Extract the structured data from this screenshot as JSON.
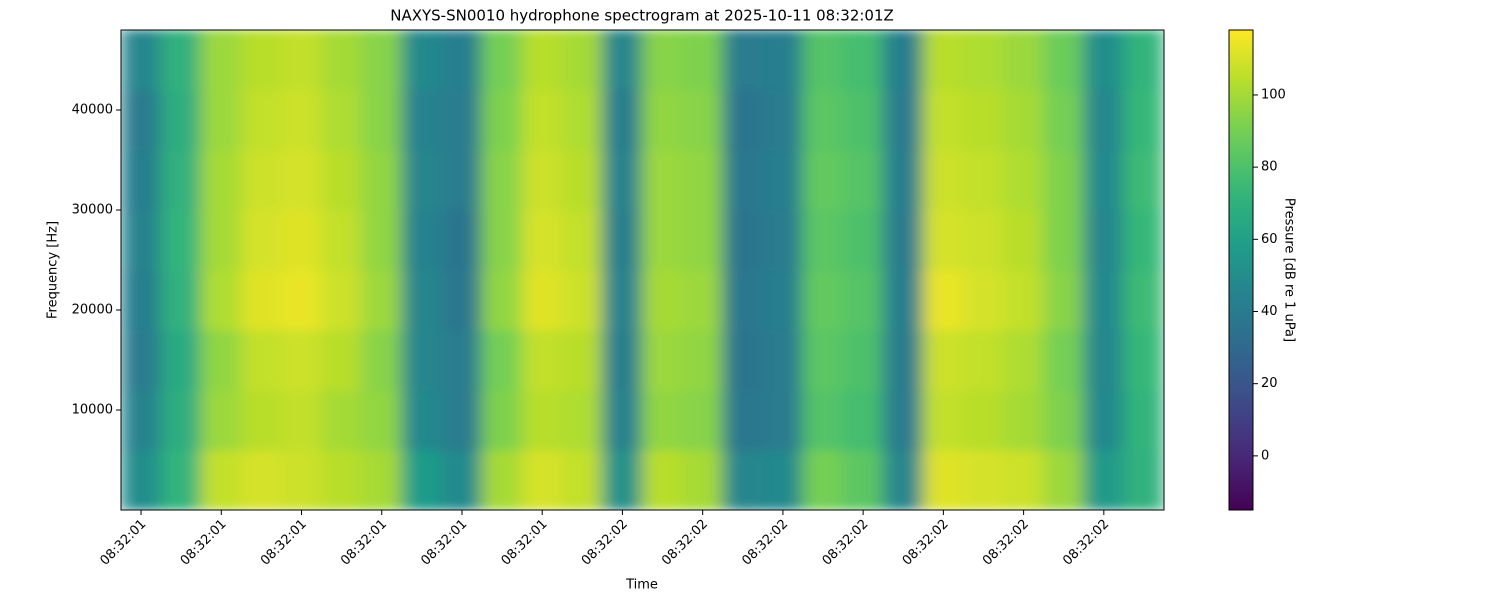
{
  "chart_data": {
    "type": "heatmap",
    "title": "NAXYS-SN0010 hydrophone spectrogram at 2025-10-11 08:32:01Z",
    "xlabel": "Time",
    "ylabel": "Frequency [Hz]",
    "colorbar_label": "Pressure [dB re 1 uPa]",
    "colormap": "viridis",
    "x": [
      1.4,
      1.45,
      1.5,
      1.55,
      1.6,
      1.65,
      1.7,
      1.75,
      1.8,
      1.85,
      1.9,
      1.95,
      2.0,
      2.05,
      2.1,
      2.15,
      2.2,
      2.25,
      2.3,
      2.35,
      2.4,
      2.45,
      2.5,
      2.55,
      2.6,
      2.65
    ],
    "y": [
      3000,
      9000,
      15000,
      21000,
      27000,
      33000,
      39000,
      45000
    ],
    "z": [
      [
        50,
        72,
        106,
        110,
        108,
        104,
        100,
        58,
        48,
        100,
        110,
        106,
        52,
        104,
        100,
        46,
        48,
        90,
        84,
        46,
        112,
        110,
        108,
        98,
        56,
        70
      ],
      [
        44,
        68,
        98,
        104,
        106,
        100,
        96,
        48,
        40,
        92,
        104,
        102,
        44,
        96,
        94,
        38,
        40,
        82,
        78,
        40,
        106,
        104,
        100,
        92,
        48,
        72
      ],
      [
        40,
        66,
        96,
        106,
        108,
        104,
        94,
        46,
        40,
        90,
        106,
        104,
        42,
        98,
        96,
        36,
        40,
        84,
        80,
        40,
        108,
        106,
        102,
        90,
        46,
        74
      ],
      [
        42,
        70,
        102,
        112,
        114,
        108,
        98,
        46,
        38,
        96,
        112,
        108,
        44,
        100,
        98,
        38,
        42,
        86,
        82,
        42,
        114,
        110,
        106,
        94,
        48,
        76
      ],
      [
        44,
        72,
        100,
        110,
        112,
        106,
        96,
        44,
        36,
        94,
        110,
        106,
        42,
        98,
        96,
        36,
        40,
        84,
        80,
        40,
        110,
        108,
        104,
        92,
        46,
        74
      ],
      [
        42,
        70,
        100,
        108,
        110,
        104,
        96,
        46,
        40,
        94,
        108,
        104,
        44,
        98,
        96,
        38,
        42,
        86,
        82,
        42,
        108,
        106,
        102,
        92,
        48,
        76
      ],
      [
        40,
        68,
        98,
        106,
        108,
        102,
        94,
        44,
        40,
        92,
        106,
        102,
        42,
        96,
        94,
        36,
        40,
        84,
        80,
        40,
        106,
        104,
        100,
        90,
        46,
        74
      ],
      [
        46,
        70,
        98,
        104,
        106,
        100,
        94,
        48,
        42,
        90,
        104,
        100,
        46,
        94,
        92,
        40,
        42,
        82,
        78,
        42,
        104,
        102,
        98,
        88,
        50,
        72
      ]
    ],
    "xlim": [
      1.375,
      2.675
    ],
    "ylim": [
      0,
      48000
    ],
    "clim": [
      -15,
      118
    ],
    "xticks": [
      {
        "value": 1.4,
        "label": "08:32:01"
      },
      {
        "value": 1.5,
        "label": "08:32:01"
      },
      {
        "value": 1.6,
        "label": "08:32:01"
      },
      {
        "value": 1.7,
        "label": "08:32:01"
      },
      {
        "value": 1.8,
        "label": "08:32:01"
      },
      {
        "value": 1.9,
        "label": "08:32:01"
      },
      {
        "value": 2.0,
        "label": "08:32:02"
      },
      {
        "value": 2.1,
        "label": "08:32:02"
      },
      {
        "value": 2.2,
        "label": "08:32:02"
      },
      {
        "value": 2.3,
        "label": "08:32:02"
      },
      {
        "value": 2.4,
        "label": "08:32:02"
      },
      {
        "value": 2.5,
        "label": "08:32:02"
      },
      {
        "value": 2.6,
        "label": "08:32:02"
      }
    ],
    "yticks": [
      10000,
      20000,
      30000,
      40000
    ],
    "cticks": [
      0,
      20,
      40,
      60,
      80,
      100
    ]
  }
}
